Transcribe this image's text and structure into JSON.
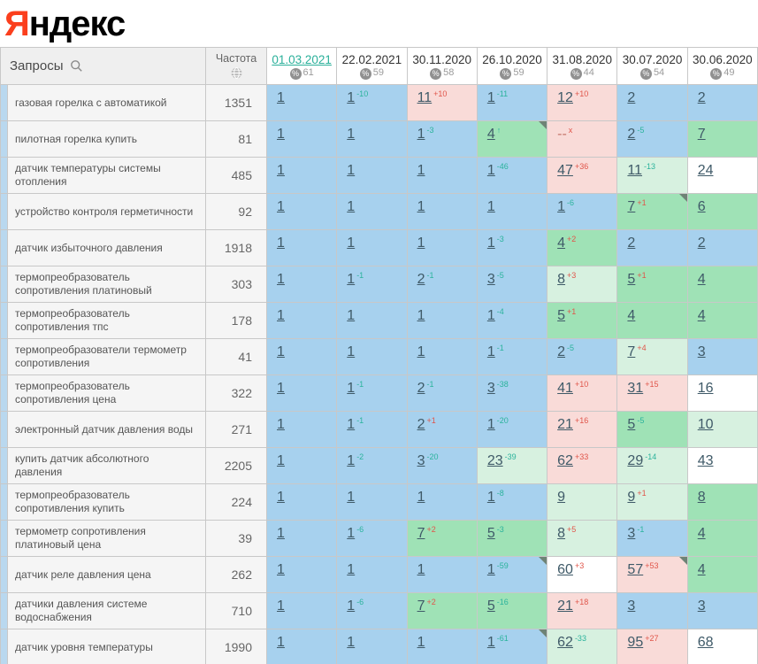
{
  "logo": {
    "ya": "Я",
    "rest": "ндекс"
  },
  "colors": {
    "blue": "#a7d1ee",
    "green": "#9fe2b6",
    "palegreen": "#d7f1e0",
    "pink": "#f9dbd8",
    "white": "#ffffff",
    "delta_up": "#2bb39c",
    "delta_down": "#e0554a",
    "link": "#3f5a68",
    "accent_date": "#2ab09a",
    "logo_red": "#fb3f1d"
  },
  "table": {
    "queries_header": "Запросы",
    "frequency_header": "Частота",
    "dates": [
      {
        "label": "01.03.2021",
        "coverage": "61",
        "active": true
      },
      {
        "label": "22.02.2021",
        "coverage": "59",
        "active": false
      },
      {
        "label": "30.11.2020",
        "coverage": "58",
        "active": false
      },
      {
        "label": "26.10.2020",
        "coverage": "59",
        "active": false
      },
      {
        "label": "31.08.2020",
        "coverage": "44",
        "active": false
      },
      {
        "label": "30.07.2020",
        "coverage": "54",
        "active": false
      },
      {
        "label": "30.06.2020",
        "coverage": "49",
        "active": false
      }
    ],
    "rows": [
      {
        "query": "газовая горелка с автоматикой",
        "frequency": "1351",
        "cells": [
          {
            "v": "1",
            "bg": "blue"
          },
          {
            "v": "1",
            "d": "-10",
            "dir": "up",
            "bg": "blue"
          },
          {
            "v": "11",
            "d": "+10",
            "dir": "down",
            "bg": "pink"
          },
          {
            "v": "1",
            "d": "-11",
            "dir": "up",
            "bg": "blue"
          },
          {
            "v": "12",
            "d": "+10",
            "dir": "down",
            "bg": "pink"
          },
          {
            "v": "2",
            "bg": "blue"
          },
          {
            "v": "2",
            "bg": "blue"
          }
        ]
      },
      {
        "query": "пилотная горелка купить",
        "frequency": "81",
        "cells": [
          {
            "v": "1",
            "bg": "blue"
          },
          {
            "v": "1",
            "bg": "blue"
          },
          {
            "v": "1",
            "d": "-3",
            "dir": "up",
            "bg": "blue"
          },
          {
            "v": "4",
            "d": "↑",
            "dir": "up",
            "bg": "green",
            "corner": true
          },
          {
            "v": "--",
            "d": "x",
            "dir": "down",
            "bg": "pink",
            "nolink": true
          },
          {
            "v": "2",
            "d": "-5",
            "dir": "up",
            "bg": "blue"
          },
          {
            "v": "7",
            "bg": "green"
          }
        ]
      },
      {
        "query": "датчик температуры системы отопления",
        "frequency": "485",
        "cells": [
          {
            "v": "1",
            "bg": "blue"
          },
          {
            "v": "1",
            "bg": "blue"
          },
          {
            "v": "1",
            "bg": "blue"
          },
          {
            "v": "1",
            "d": "-46",
            "dir": "up",
            "bg": "blue"
          },
          {
            "v": "47",
            "d": "+36",
            "dir": "down",
            "bg": "pink"
          },
          {
            "v": "11",
            "d": "-13",
            "dir": "up",
            "bg": "palegreen"
          },
          {
            "v": "24",
            "bg": "white"
          }
        ]
      },
      {
        "query": "устройство контроля герметичности",
        "frequency": "92",
        "cells": [
          {
            "v": "1",
            "bg": "blue"
          },
          {
            "v": "1",
            "bg": "blue"
          },
          {
            "v": "1",
            "bg": "blue"
          },
          {
            "v": "1",
            "bg": "blue"
          },
          {
            "v": "1",
            "d": "-6",
            "dir": "up",
            "bg": "blue"
          },
          {
            "v": "7",
            "d": "+1",
            "dir": "down",
            "bg": "green",
            "corner": true
          },
          {
            "v": "6",
            "bg": "green"
          }
        ]
      },
      {
        "query": "датчик избыточного давления",
        "frequency": "1918",
        "cells": [
          {
            "v": "1",
            "bg": "blue"
          },
          {
            "v": "1",
            "bg": "blue"
          },
          {
            "v": "1",
            "bg": "blue"
          },
          {
            "v": "1",
            "d": "-3",
            "dir": "up",
            "bg": "blue"
          },
          {
            "v": "4",
            "d": "+2",
            "dir": "down",
            "bg": "green"
          },
          {
            "v": "2",
            "bg": "blue"
          },
          {
            "v": "2",
            "bg": "blue"
          }
        ]
      },
      {
        "query": "термопреобразователь сопротивления платиновый",
        "frequency": "303",
        "cells": [
          {
            "v": "1",
            "bg": "blue"
          },
          {
            "v": "1",
            "d": "-1",
            "dir": "up",
            "bg": "blue"
          },
          {
            "v": "2",
            "d": "-1",
            "dir": "up",
            "bg": "blue"
          },
          {
            "v": "3",
            "d": "-5",
            "dir": "up",
            "bg": "blue"
          },
          {
            "v": "8",
            "d": "+3",
            "dir": "down",
            "bg": "palegreen"
          },
          {
            "v": "5",
            "d": "+1",
            "dir": "down",
            "bg": "green"
          },
          {
            "v": "4",
            "bg": "green"
          }
        ]
      },
      {
        "query": "термопреобразователь сопротивления тпс",
        "frequency": "178",
        "cells": [
          {
            "v": "1",
            "bg": "blue"
          },
          {
            "v": "1",
            "bg": "blue"
          },
          {
            "v": "1",
            "bg": "blue"
          },
          {
            "v": "1",
            "d": "-4",
            "dir": "up",
            "bg": "blue"
          },
          {
            "v": "5",
            "d": "+1",
            "dir": "down",
            "bg": "green"
          },
          {
            "v": "4",
            "bg": "green"
          },
          {
            "v": "4",
            "bg": "green"
          }
        ]
      },
      {
        "query": "термопреобразователи термометр сопротивления",
        "frequency": "41",
        "cells": [
          {
            "v": "1",
            "bg": "blue"
          },
          {
            "v": "1",
            "bg": "blue"
          },
          {
            "v": "1",
            "bg": "blue"
          },
          {
            "v": "1",
            "d": "-1",
            "dir": "up",
            "bg": "blue"
          },
          {
            "v": "2",
            "d": "-5",
            "dir": "up",
            "bg": "blue"
          },
          {
            "v": "7",
            "d": "+4",
            "dir": "down",
            "bg": "palegreen"
          },
          {
            "v": "3",
            "bg": "blue"
          }
        ]
      },
      {
        "query": "термопреобразователь сопротивления цена",
        "frequency": "322",
        "cells": [
          {
            "v": "1",
            "bg": "blue"
          },
          {
            "v": "1",
            "d": "-1",
            "dir": "up",
            "bg": "blue"
          },
          {
            "v": "2",
            "d": "-1",
            "dir": "up",
            "bg": "blue"
          },
          {
            "v": "3",
            "d": "-38",
            "dir": "up",
            "bg": "blue"
          },
          {
            "v": "41",
            "d": "+10",
            "dir": "down",
            "bg": "pink"
          },
          {
            "v": "31",
            "d": "+15",
            "dir": "down",
            "bg": "pink"
          },
          {
            "v": "16",
            "bg": "white"
          }
        ]
      },
      {
        "query": "электронный датчик давления воды",
        "frequency": "271",
        "cells": [
          {
            "v": "1",
            "bg": "blue"
          },
          {
            "v": "1",
            "d": "-1",
            "dir": "up",
            "bg": "blue"
          },
          {
            "v": "2",
            "d": "+1",
            "dir": "down",
            "bg": "blue"
          },
          {
            "v": "1",
            "d": "-20",
            "dir": "up",
            "bg": "blue"
          },
          {
            "v": "21",
            "d": "+16",
            "dir": "down",
            "bg": "pink"
          },
          {
            "v": "5",
            "d": "-5",
            "dir": "up",
            "bg": "green"
          },
          {
            "v": "10",
            "bg": "palegreen"
          }
        ]
      },
      {
        "query": "купить датчик абсолютного давления",
        "frequency": "2205",
        "cells": [
          {
            "v": "1",
            "bg": "blue"
          },
          {
            "v": "1",
            "d": "-2",
            "dir": "up",
            "bg": "blue"
          },
          {
            "v": "3",
            "d": "-20",
            "dir": "up",
            "bg": "blue"
          },
          {
            "v": "23",
            "d": "-39",
            "dir": "up",
            "bg": "palegreen"
          },
          {
            "v": "62",
            "d": "+33",
            "dir": "down",
            "bg": "pink"
          },
          {
            "v": "29",
            "d": "-14",
            "dir": "up",
            "bg": "palegreen"
          },
          {
            "v": "43",
            "bg": "white"
          }
        ]
      },
      {
        "query": "термопреобразователь сопротивления купить",
        "frequency": "224",
        "cells": [
          {
            "v": "1",
            "bg": "blue"
          },
          {
            "v": "1",
            "bg": "blue"
          },
          {
            "v": "1",
            "bg": "blue"
          },
          {
            "v": "1",
            "d": "-8",
            "dir": "up",
            "bg": "blue"
          },
          {
            "v": "9",
            "bg": "palegreen"
          },
          {
            "v": "9",
            "d": "+1",
            "dir": "down",
            "bg": "palegreen"
          },
          {
            "v": "8",
            "bg": "green"
          }
        ]
      },
      {
        "query": "термометр сопротивления платиновый цена",
        "frequency": "39",
        "cells": [
          {
            "v": "1",
            "bg": "blue"
          },
          {
            "v": "1",
            "d": "-6",
            "dir": "up",
            "bg": "blue"
          },
          {
            "v": "7",
            "d": "+2",
            "dir": "down",
            "bg": "green"
          },
          {
            "v": "5",
            "d": "-3",
            "dir": "up",
            "bg": "green"
          },
          {
            "v": "8",
            "d": "+5",
            "dir": "down",
            "bg": "palegreen"
          },
          {
            "v": "3",
            "d": "-1",
            "dir": "up",
            "bg": "blue"
          },
          {
            "v": "4",
            "bg": "green"
          }
        ]
      },
      {
        "query": "датчик реле давления цена",
        "frequency": "262",
        "cells": [
          {
            "v": "1",
            "bg": "blue"
          },
          {
            "v": "1",
            "bg": "blue"
          },
          {
            "v": "1",
            "bg": "blue"
          },
          {
            "v": "1",
            "d": "-59",
            "dir": "up",
            "bg": "blue",
            "corner": true
          },
          {
            "v": "60",
            "d": "+3",
            "dir": "down",
            "bg": "white"
          },
          {
            "v": "57",
            "d": "+53",
            "dir": "down",
            "bg": "pink",
            "corner": true
          },
          {
            "v": "4",
            "bg": "green"
          }
        ]
      },
      {
        "query": "датчики давления системе водоснабжения",
        "frequency": "710",
        "cells": [
          {
            "v": "1",
            "bg": "blue"
          },
          {
            "v": "1",
            "d": "-6",
            "dir": "up",
            "bg": "blue"
          },
          {
            "v": "7",
            "d": "+2",
            "dir": "down",
            "bg": "green"
          },
          {
            "v": "5",
            "d": "-16",
            "dir": "up",
            "bg": "green"
          },
          {
            "v": "21",
            "d": "+18",
            "dir": "down",
            "bg": "pink"
          },
          {
            "v": "3",
            "bg": "blue"
          },
          {
            "v": "3",
            "bg": "blue"
          }
        ]
      },
      {
        "query": "датчик уровня температуры",
        "frequency": "1990",
        "cells": [
          {
            "v": "1",
            "bg": "blue"
          },
          {
            "v": "1",
            "bg": "blue"
          },
          {
            "v": "1",
            "bg": "blue"
          },
          {
            "v": "1",
            "d": "-61",
            "dir": "up",
            "bg": "blue",
            "corner": true
          },
          {
            "v": "62",
            "d": "-33",
            "dir": "up",
            "bg": "palegreen"
          },
          {
            "v": "95",
            "d": "+27",
            "dir": "down",
            "bg": "pink"
          },
          {
            "v": "68",
            "bg": "white"
          }
        ]
      }
    ]
  }
}
